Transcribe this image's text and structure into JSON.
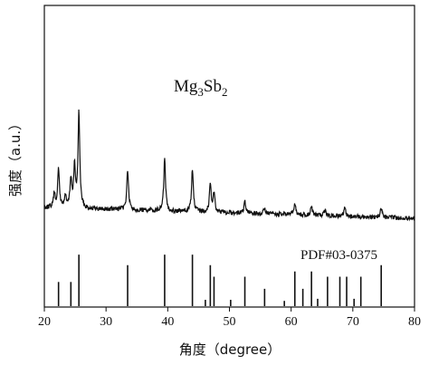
{
  "chart_data": {
    "type": "line",
    "xlabel": "角度（degree）",
    "ylabel": "强度（a.u.）",
    "xlim": [
      20,
      80
    ],
    "xticks": [
      20,
      30,
      40,
      50,
      60,
      70,
      80
    ],
    "grid": false,
    "series": [
      {
        "name": "Mg3Sb2",
        "label_parts": {
          "base1": "Mg",
          "sub1": "3",
          "base2": "Sb",
          "sub2": "2"
        },
        "peaks": [
          [
            21.6,
            0.14
          ],
          [
            22.3,
            0.4
          ],
          [
            23.4,
            0.12
          ],
          [
            24.3,
            0.3
          ],
          [
            24.9,
            0.42
          ],
          [
            25.6,
            1.0
          ],
          [
            33.5,
            0.42
          ],
          [
            39.5,
            0.55
          ],
          [
            44.0,
            0.44
          ],
          [
            46.9,
            0.3
          ],
          [
            47.5,
            0.2
          ],
          [
            52.5,
            0.12
          ],
          [
            55.7,
            0.06
          ],
          [
            60.6,
            0.12
          ],
          [
            63.3,
            0.1
          ],
          [
            65.5,
            0.06
          ],
          [
            68.7,
            0.08
          ],
          [
            74.6,
            0.1
          ]
        ]
      }
    ],
    "reference": {
      "name": "PDF#03-0375",
      "lines": [
        [
          22.3,
          0.46
        ],
        [
          24.3,
          0.46
        ],
        [
          25.6,
          0.98
        ],
        [
          33.5,
          0.78
        ],
        [
          39.5,
          0.98
        ],
        [
          44.0,
          0.98
        ],
        [
          46.1,
          0.12
        ],
        [
          46.9,
          0.78
        ],
        [
          47.5,
          0.56
        ],
        [
          50.2,
          0.12
        ],
        [
          52.5,
          0.56
        ],
        [
          55.7,
          0.33
        ],
        [
          58.9,
          0.1
        ],
        [
          60.6,
          0.66
        ],
        [
          61.9,
          0.33
        ],
        [
          63.3,
          0.66
        ],
        [
          64.3,
          0.14
        ],
        [
          65.9,
          0.56
        ],
        [
          67.9,
          0.56
        ],
        [
          69.0,
          0.56
        ],
        [
          70.2,
          0.14
        ],
        [
          71.3,
          0.56
        ],
        [
          74.6,
          0.78
        ]
      ]
    }
  }
}
